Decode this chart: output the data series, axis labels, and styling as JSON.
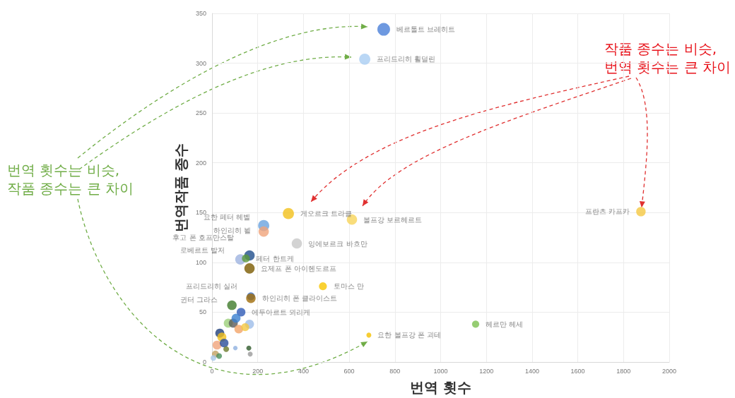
{
  "chart_data": {
    "type": "bubble",
    "xlabel": "번역 횟수",
    "ylabel": "번역작품 종수",
    "x": [
      751,
      668,
      334,
      612,
      1876,
      226,
      226,
      371,
      164,
      124,
      148,
      164,
      485,
      170,
      170,
      87,
      127,
      1153,
      686,
      71,
      93,
      105,
      164,
      117,
      145,
      34,
      43,
      22,
      53,
      62,
      102,
      161,
      167,
      15,
      31,
      6
    ],
    "values": [
      334,
      304,
      149,
      143,
      151,
      137,
      131,
      119,
      107,
      103,
      104,
      94,
      76,
      66,
      64,
      57,
      50,
      38,
      27,
      39,
      39,
      44,
      38,
      33,
      35,
      29,
      25,
      17,
      19,
      13,
      14,
      14,
      8,
      8,
      6,
      4
    ],
    "sizes": [
      1,
      0.77,
      0.77,
      0.66,
      0.56,
      0.77,
      0.66,
      0.66,
      0.66,
      0.66,
      0.39,
      0.66,
      0.39,
      0.39,
      0.56,
      0.56,
      0.47,
      0.32,
      0.15,
      0.5,
      0.5,
      0.5,
      0.5,
      0.47,
      0.4,
      0.5,
      0.5,
      0.5,
      0.47,
      0.2,
      0.12,
      0.15,
      0.15,
      0.3,
      0.2,
      0.2
    ],
    "colors": [
      "#4a7fd8",
      "#a9cdf3",
      "#f2c01a",
      "#f7d55a",
      "#f5c842",
      "#6aa3de",
      "#f0a47a",
      "#c8c8c8",
      "#1f4e8c",
      "#9db3e0",
      "#5a9a3c",
      "#7a5a00",
      "#f7c500",
      "#3b6fc4",
      "#a06d0a",
      "#3f7a2a",
      "#2f5bb7",
      "#7cc050",
      "#f5c000",
      "#9ccf7a",
      "#5a5a5a",
      "#3a7fd0",
      "#9ebde8",
      "#f2a468",
      "#f5c842",
      "#1f3e7a",
      "#f2c01a",
      "#f0a47a",
      "#2a4f9a",
      "#6b7a2a",
      "#8fb0e0",
      "#2f5a2a",
      "#9a9a9a",
      "#c0a060",
      "#4a8f5a",
      "#a8c8e8"
    ],
    "value_labels": [
      "베르톨트 브레히트",
      "프리드리히 횔덜린",
      "게오르크 트라클",
      "볼프강 보르헤르트",
      "프란츠 카프카",
      "요한 페터 헤벨",
      "하인리히 뵐",
      "잉에보르크 바흐만",
      "후고 폰 호프만스탈",
      "로베르트 발저",
      "페터 한트케",
      "요제프 폰 아이헨도르프",
      "토마스 만",
      "프리드리히 실러",
      "하인리히 폰 클라이스트",
      "귄터 그라스",
      "에두아르트 뫼리케",
      "헤르만 헤세",
      "요한 볼프강 폰 괴테",
      null,
      null,
      null,
      null,
      null,
      null,
      null,
      null,
      null,
      null,
      null,
      null,
      null,
      null,
      null,
      null,
      null
    ],
    "xlim": [
      0,
      2000
    ],
    "xticks": [
      0,
      200,
      400,
      600,
      800,
      1000,
      1200,
      1400,
      1600,
      1800,
      2000
    ],
    "ylim": [
      0,
      350
    ],
    "yticks": [
      0,
      50,
      100,
      150,
      200,
      250,
      300,
      350
    ],
    "grid": true,
    "annotations": [
      "번역 횟수는 비슷,\n작품 종수는 큰 차이",
      {
        "text": "작품 종수는 비슷,\n번역 횟수는 큰 차이",
        "x": 1876,
        "y": 151
      }
    ]
  }
}
